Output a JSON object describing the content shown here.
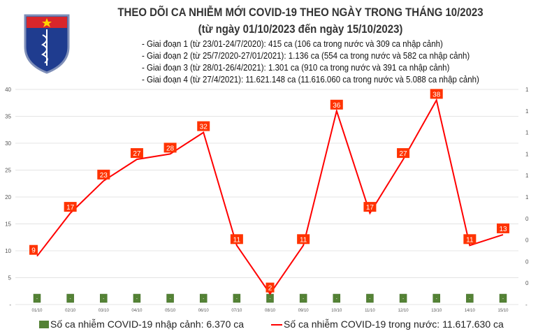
{
  "header": {
    "logo_text": "BỘ Y TẾ · MINISTRY OF HEALTH",
    "title": "THEO DÕI CA NHIỄM MỚI COVID-19 THEO NGÀY TRONG THÁNG 10/2023",
    "subtitle": "(từ ngày 01/10/2023 đến ngày 15/10/2023)",
    "notes": [
      "- Giai đoạn 1 (từ 23/01-24/7/2020): 415 ca (106 ca trong nước và 309 ca nhập cảnh)",
      "- Giai đoạn 2 (từ 25/7/2020-27/01/2021): 1.136 ca (554 ca trong nước và 582 ca nhập cảnh)",
      "- Giai đoạn 3 (từ 28/01-26/4/2021): 1.301 ca (910 ca trong nước và 391 ca nhập cảnh)",
      "- Giai đoạn 4 (từ 27/4/2021): 11.621.148 ca (11.616.060 ca trong nước và 5.088 ca nhập cảnh)"
    ]
  },
  "chart_data": {
    "type": "bar+line",
    "categories": [
      "01/10",
      "02/10",
      "03/10",
      "04/10",
      "05/10",
      "06/10",
      "07/10",
      "08/10",
      "09/10",
      "10/10",
      "11/10",
      "12/10",
      "13/10",
      "14/10",
      "15/10"
    ],
    "series": [
      {
        "name": "Số ca nhiễm COVID-19 nhập cảnh: 6.370 ca",
        "type": "bar",
        "axis": "right",
        "values": [
          0,
          0,
          0,
          0,
          0,
          0,
          0,
          0,
          0,
          0,
          0,
          0,
          0,
          0,
          0
        ],
        "labels": [
          "-",
          "-",
          "-",
          "-",
          "-",
          "-",
          "-",
          "-",
          "-",
          "-",
          "-",
          "-",
          "-",
          "-",
          "-"
        ],
        "color": "#548235"
      },
      {
        "name": "Số ca nhiễm COVID-19 trong nước: 11.617.630 ca",
        "type": "line",
        "axis": "left",
        "values": [
          9,
          17,
          23,
          27,
          28,
          32,
          11,
          2,
          11,
          36,
          17,
          27,
          38,
          11,
          13
        ],
        "color": "#ff0000",
        "label_bg": "#ff3300"
      }
    ],
    "y_left": {
      "ticks": [
        "-",
        "5",
        "10",
        "15",
        "20",
        "25",
        "30",
        "35",
        "40"
      ],
      "range": [
        0,
        40
      ]
    },
    "y_right": {
      "ticks": [
        "-",
        "0",
        "0",
        "0",
        "0",
        "1",
        "1",
        "1",
        "1",
        "1",
        "1"
      ]
    },
    "grid": true,
    "legend_position": "bottom"
  }
}
